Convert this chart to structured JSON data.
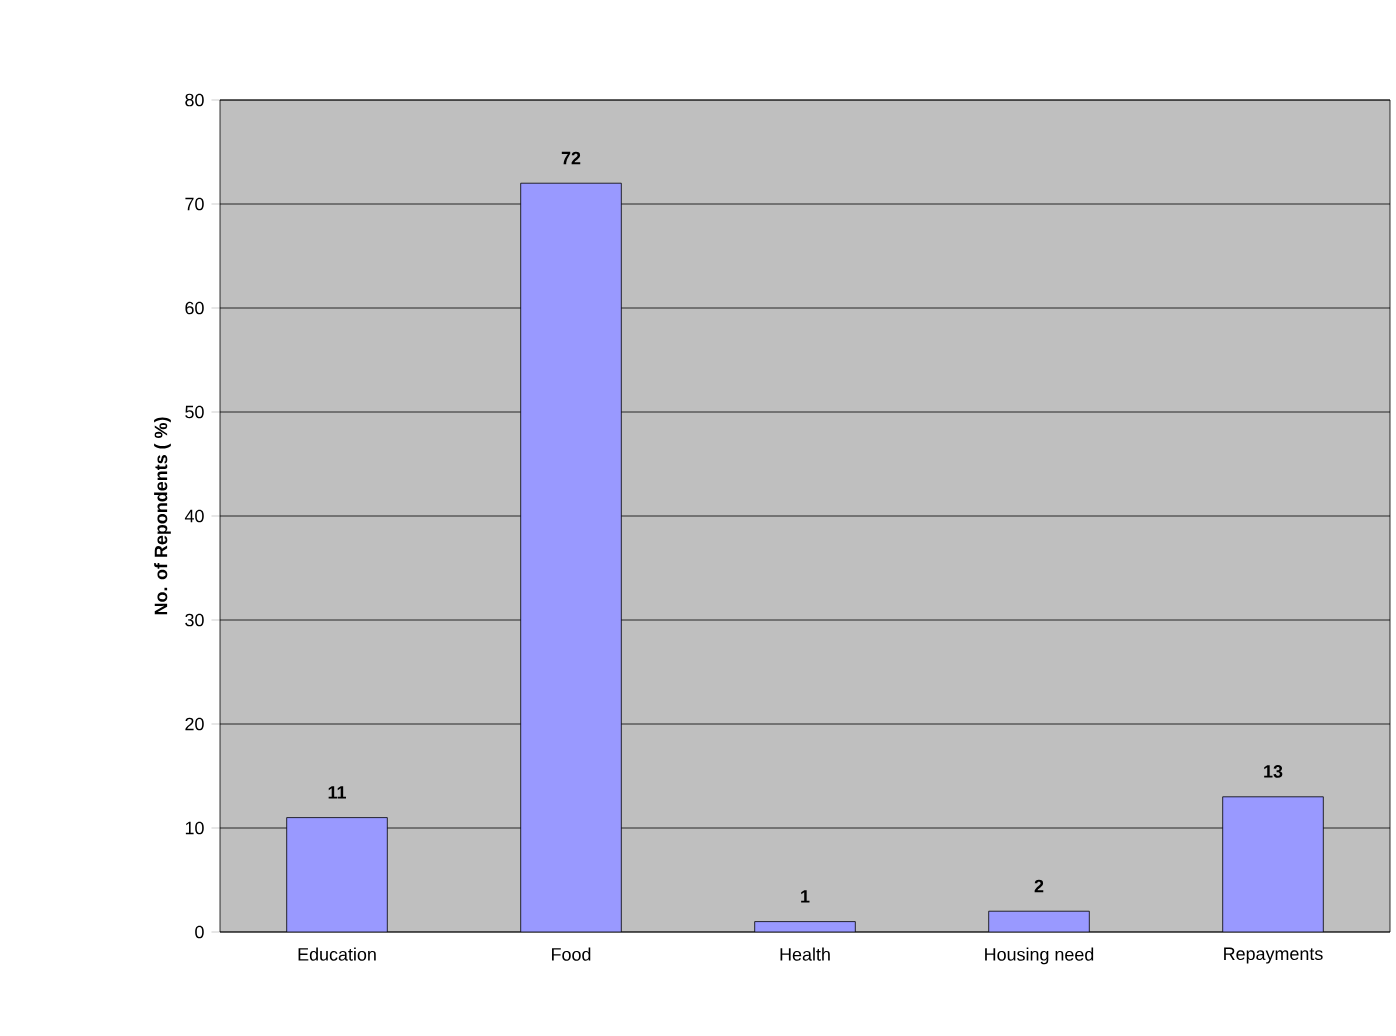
{
  "chart_data": {
    "type": "bar",
    "ylabel": "No. of Repondents ( %)",
    "categories": [
      "Education",
      "Food",
      "Health",
      "Housing need",
      "Repayments"
    ],
    "values": [
      11,
      72,
      1,
      2,
      13
    ],
    "color": "#9999ff",
    "ylim": [
      0,
      80
    ],
    "yticks": [
      0,
      10,
      20,
      30,
      40,
      50,
      60,
      70,
      80
    ],
    "grid": "y",
    "data_labels": true
  }
}
